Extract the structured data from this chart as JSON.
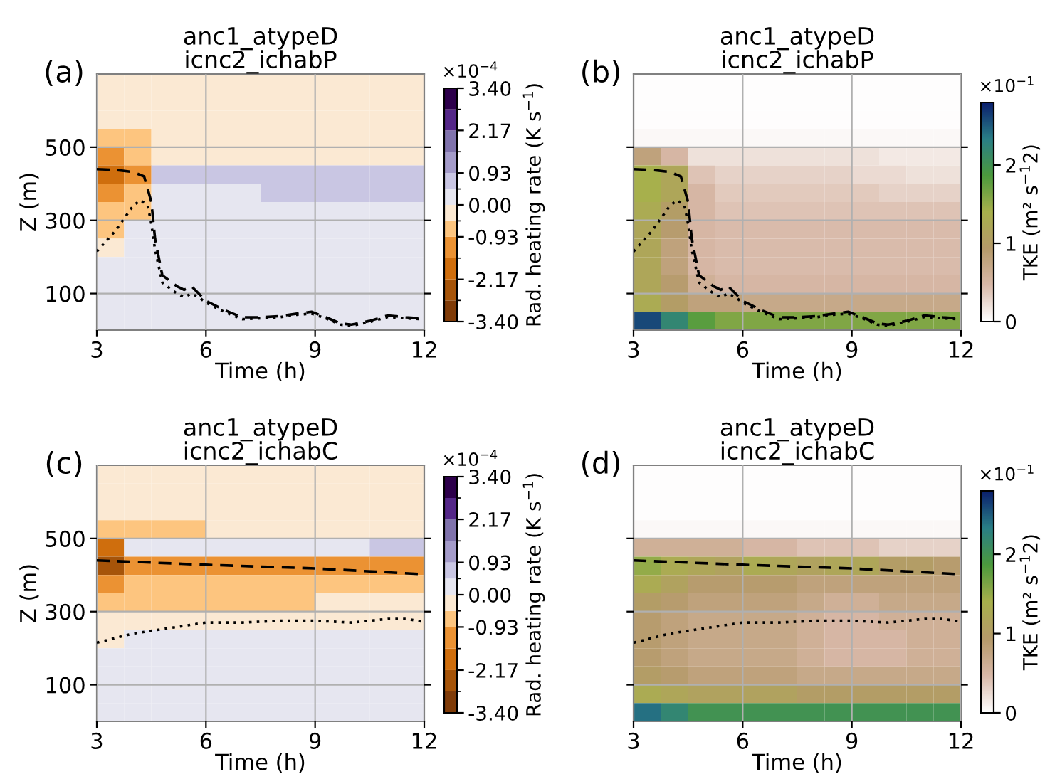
{
  "chart_data": [
    {
      "type": "heatmap",
      "title": "anc1_atypeD\nicnc2_ichabP",
      "xlabel": "Time (h)",
      "ylabel": "Z (m)",
      "clabel": "Rad. heating rate (K s$^{−1}$)",
      "annotations": [
        "(a)",
        "×10$^{−4}$"
      ],
      "x": [
        3.375,
        4.125,
        4.875,
        5.625,
        6.375,
        7.125,
        7.875,
        8.625,
        9.375,
        10.125,
        10.875,
        11.625
      ],
      "cells": [
        [
          -0.23,
          -0.23,
          -0.23,
          -0.23,
          -0.23,
          -0.23,
          -0.23,
          -0.23,
          -0.23,
          -0.23,
          -0.23,
          -0.23
        ],
        [
          -0.23,
          -0.23,
          -0.23,
          -0.23,
          -0.23,
          -0.23,
          -0.23,
          -0.23,
          -0.23,
          -0.23,
          -0.23,
          -0.23
        ],
        [
          -0.23,
          -0.23,
          -0.23,
          -0.23,
          -0.23,
          -0.23,
          -0.23,
          -0.23,
          -0.23,
          -0.23,
          -0.23,
          -0.23
        ],
        [
          -0.7,
          -0.7,
          -0.23,
          -0.23,
          -0.23,
          -0.23,
          -0.23,
          -0.23,
          -0.23,
          -0.23,
          -0.23,
          -0.23
        ],
        [
          -1.24,
          -0.7,
          -0.23,
          -0.23,
          -0.23,
          -0.23,
          -0.23,
          -0.23,
          -0.23,
          -0.23,
          -0.23,
          -0.23
        ],
        [
          -1.86,
          -1.24,
          0.7,
          0.7,
          0.7,
          0.7,
          0.7,
          0.7,
          0.7,
          0.7,
          0.7,
          0.7
        ],
        [
          -1.24,
          -0.7,
          0.23,
          0.23,
          0.23,
          0.23,
          0.7,
          0.7,
          0.7,
          0.7,
          0.7,
          0.7
        ],
        [
          -0.7,
          -0.7,
          0.23,
          0.23,
          0.23,
          0.23,
          0.23,
          0.23,
          0.23,
          0.23,
          0.23,
          0.23
        ],
        [
          -0.7,
          0.23,
          0.23,
          0.23,
          0.23,
          0.23,
          0.23,
          0.23,
          0.23,
          0.23,
          0.23,
          0.23
        ],
        [
          -0.23,
          0.23,
          0.23,
          0.23,
          0.23,
          0.23,
          0.23,
          0.23,
          0.23,
          0.23,
          0.23,
          0.23
        ],
        [
          0.23,
          0.23,
          0.23,
          0.23,
          0.23,
          0.23,
          0.23,
          0.23,
          0.23,
          0.23,
          0.23,
          0.23
        ],
        [
          0.23,
          0.23,
          0.23,
          0.23,
          0.23,
          0.23,
          0.23,
          0.23,
          0.23,
          0.23,
          0.23,
          0.23
        ],
        [
          0.23,
          0.23,
          0.23,
          0.23,
          0.23,
          0.23,
          0.23,
          0.23,
          0.23,
          0.23,
          0.23,
          0.23
        ],
        [
          0.23,
          0.23,
          0.23,
          0.23,
          0.23,
          0.23,
          0.23,
          0.23,
          0.23,
          0.23,
          0.23,
          0.23
        ]
      ],
      "clim": [
        -3.4,
        3.4
      ],
      "cticks": [
        {
          "value": -3.4,
          "label": "-3.40"
        },
        {
          "value": -2.17,
          "label": "-2.17"
        },
        {
          "value": -0.93,
          "label": "-0.93"
        },
        {
          "value": 0,
          "label": "0.00"
        },
        {
          "value": 0.93,
          "label": "0.93"
        },
        {
          "value": 2.17,
          "label": "2.17"
        },
        {
          "value": 3.4,
          "label": "3.40"
        }
      ],
      "colors": [
        "#7f3b08",
        "#a65409",
        "#cf6e0d",
        "#eb9233",
        "#fdc57f",
        "#fbe9d3",
        "#e6e6f0",
        "#c9c6e3",
        "#a49bc9",
        "#8073ac",
        "#542788",
        "#2d004b"
      ],
      "series": [
        {
          "type": "line",
          "color": "#000000",
          "line_style": "dashed",
          "x": [
            3,
            3.5,
            4,
            4.3,
            4.5,
            4.6,
            4.8,
            5.2,
            5.4,
            5.6,
            5.8,
            6,
            6.5,
            7,
            7.5,
            8,
            8.5,
            8.9,
            9.3,
            9.7,
            10,
            10.5,
            11,
            11.5,
            11.9
          ],
          "values": [
            440,
            438,
            432,
            420,
            350,
            250,
            150,
            120,
            110,
            120,
            100,
            80,
            55,
            35,
            35,
            38,
            45,
            50,
            35,
            18,
            15,
            25,
            40,
            35,
            32
          ]
        },
        {
          "type": "line",
          "color": "#000000",
          "line_style": "dotted",
          "x": [
            3,
            3.5,
            4,
            4.2,
            4.4,
            4.5,
            4.6,
            4.8,
            5.2,
            5.4,
            5.6,
            5.8,
            6,
            6.5,
            7,
            7.5,
            8,
            8.5,
            8.9,
            9.3,
            9.7,
            10,
            10.5,
            11,
            11.5,
            11.9
          ],
          "values": [
            215,
            270,
            340,
            355,
            340,
            290,
            220,
            130,
            100,
            90,
            100,
            90,
            75,
            50,
            30,
            32,
            35,
            42,
            45,
            32,
            15,
            12,
            22,
            36,
            32,
            30
          ]
        }
      ],
      "xlim": [
        3,
        12
      ],
      "xticks": [
        3,
        6,
        9,
        12
      ],
      "ylim": [
        0,
        700
      ],
      "yticks": [
        100,
        300,
        500
      ],
      "grid": true
    },
    {
      "type": "heatmap",
      "title": "anc1_atypeD\nicnc2_ichabP",
      "xlabel": "Time (h)",
      "clabel": "TKE (m² s$^{−1}$2)",
      "annotations": [
        "(b)",
        "×10$^{−1}$"
      ],
      "tick_labels": "x",
      "x": [
        3.375,
        4.125,
        4.875,
        5.625,
        6.375,
        7.125,
        7.875,
        8.625,
        9.375,
        10.125,
        10.875,
        11.625
      ],
      "cells": [
        [
          0.02,
          0.02,
          0.02,
          0.02,
          0.02,
          0.02,
          0.02,
          0.02,
          0.02,
          0.02,
          0.02,
          0.02
        ],
        [
          0.02,
          0.02,
          0.02,
          0.02,
          0.02,
          0.02,
          0.02,
          0.02,
          0.02,
          0.02,
          0.02,
          0.02
        ],
        [
          0.02,
          0.02,
          0.02,
          0.02,
          0.02,
          0.02,
          0.02,
          0.02,
          0.02,
          0.02,
          0.02,
          0.02
        ],
        [
          0.05,
          0.05,
          0.05,
          0.05,
          0.05,
          0.05,
          0.05,
          0.05,
          0.05,
          0.05,
          0.05,
          0.05
        ],
        [
          0.8,
          0.5,
          0.2,
          0.2,
          0.2,
          0.2,
          0.2,
          0.2,
          0.2,
          0.15,
          0.15,
          0.15
        ],
        [
          1.4,
          1.2,
          0.4,
          0.3,
          0.3,
          0.3,
          0.3,
          0.3,
          0.25,
          0.25,
          0.2,
          0.2
        ],
        [
          1.4,
          1.2,
          0.5,
          0.35,
          0.35,
          0.35,
          0.35,
          0.35,
          0.35,
          0.3,
          0.3,
          0.3
        ],
        [
          1.3,
          1.0,
          0.5,
          0.4,
          0.4,
          0.4,
          0.4,
          0.4,
          0.4,
          0.4,
          0.4,
          0.4
        ],
        [
          1.2,
          0.9,
          0.5,
          0.45,
          0.45,
          0.45,
          0.45,
          0.45,
          0.45,
          0.45,
          0.45,
          0.45
        ],
        [
          1.2,
          0.8,
          0.5,
          0.45,
          0.45,
          0.45,
          0.45,
          0.45,
          0.45,
          0.45,
          0.45,
          0.45
        ],
        [
          1.2,
          0.8,
          0.5,
          0.45,
          0.45,
          0.45,
          0.45,
          0.45,
          0.45,
          0.45,
          0.45,
          0.45
        ],
        [
          1.2,
          0.9,
          0.6,
          0.5,
          0.5,
          0.5,
          0.5,
          0.5,
          0.5,
          0.5,
          0.5,
          0.5
        ],
        [
          1.3,
          1.0,
          0.8,
          0.8,
          0.7,
          0.7,
          0.7,
          0.7,
          0.7,
          0.7,
          0.7,
          0.7
        ],
        [
          2.6,
          2.2,
          1.8,
          1.6,
          1.6,
          1.6,
          1.6,
          1.6,
          1.6,
          1.6,
          1.6,
          1.6
        ]
      ],
      "clim": [
        0,
        2.8
      ],
      "cticks": [
        0,
        1,
        2
      ],
      "colors": [
        "#ffffff",
        "#d8b8a8",
        "#b59a6a",
        "#a8b04c",
        "#4c9a3d",
        "#2a7f86",
        "#0b1f6e"
      ],
      "series": [
        {
          "type": "line",
          "color": "#000000",
          "line_style": "dashed",
          "x": [
            3,
            3.5,
            4,
            4.3,
            4.5,
            4.6,
            4.8,
            5.2,
            5.4,
            5.6,
            5.8,
            6,
            6.5,
            7,
            7.5,
            8,
            8.5,
            8.9,
            9.3,
            9.7,
            10,
            10.5,
            11,
            11.5,
            11.9
          ],
          "values": [
            440,
            438,
            432,
            420,
            350,
            250,
            150,
            120,
            110,
            120,
            100,
            80,
            55,
            35,
            35,
            38,
            45,
            50,
            35,
            18,
            15,
            25,
            40,
            35,
            32
          ]
        },
        {
          "type": "line",
          "color": "#000000",
          "line_style": "dotted",
          "x": [
            3,
            3.5,
            4,
            4.2,
            4.4,
            4.5,
            4.6,
            4.8,
            5.2,
            5.4,
            5.6,
            5.8,
            6,
            6.5,
            7,
            7.5,
            8,
            8.5,
            8.9,
            9.3,
            9.7,
            10,
            10.5,
            11,
            11.5,
            11.9
          ],
          "values": [
            215,
            270,
            340,
            355,
            340,
            290,
            220,
            130,
            100,
            90,
            100,
            90,
            75,
            50,
            30,
            32,
            35,
            42,
            45,
            32,
            15,
            12,
            22,
            36,
            32,
            30
          ]
        }
      ],
      "xlim": [
        3,
        12
      ],
      "xticks": [
        3,
        6,
        9,
        12
      ],
      "ylim": [
        0,
        700
      ],
      "yticks": [
        100,
        300,
        500
      ],
      "grid": true
    },
    {
      "type": "heatmap",
      "title": "anc1_atypeD\nicnc2_ichabC",
      "xlabel": "Time (h)",
      "ylabel": "Z (m)",
      "clabel": "Rad. heating rate (K s$^{−1}$)",
      "annotations": [
        "(c)",
        "×10$^{−4}$"
      ],
      "x": [
        3.375,
        4.125,
        4.875,
        5.625,
        6.375,
        7.125,
        7.875,
        8.625,
        9.375,
        10.125,
        10.875,
        11.625
      ],
      "cells": [
        [
          -0.23,
          -0.23,
          -0.23,
          -0.23,
          -0.23,
          -0.23,
          -0.23,
          -0.23,
          -0.23,
          -0.23,
          -0.23,
          -0.23
        ],
        [
          -0.23,
          -0.23,
          -0.23,
          -0.23,
          -0.23,
          -0.23,
          -0.23,
          -0.23,
          -0.23,
          -0.23,
          -0.23,
          -0.23
        ],
        [
          -0.23,
          -0.23,
          -0.23,
          -0.23,
          -0.23,
          -0.23,
          -0.23,
          -0.23,
          -0.23,
          -0.23,
          -0.23,
          -0.23
        ],
        [
          -0.7,
          -0.7,
          -0.7,
          -0.7,
          -0.23,
          -0.23,
          -0.23,
          -0.23,
          -0.23,
          -0.23,
          -0.23,
          -0.23
        ],
        [
          -1.86,
          0.23,
          0.23,
          0.23,
          0.23,
          0.23,
          0.23,
          0.23,
          0.23,
          0.23,
          0.7,
          0.7
        ],
        [
          -2.48,
          -1.24,
          -1.24,
          -1.24,
          -1.24,
          -1.24,
          -1.24,
          -1.24,
          -1.24,
          -1.24,
          -1.24,
          -1.24
        ],
        [
          -1.24,
          -0.7,
          -0.7,
          -0.7,
          -0.7,
          -0.7,
          -0.7,
          -0.7,
          -0.7,
          -0.7,
          -0.7,
          -0.7
        ],
        [
          -0.7,
          -0.7,
          -0.7,
          -0.7,
          -0.7,
          -0.7,
          -0.7,
          -0.7,
          -0.23,
          -0.23,
          -0.23,
          -0.23
        ],
        [
          -0.23,
          -0.23,
          -0.23,
          -0.23,
          -0.23,
          -0.23,
          -0.23,
          -0.23,
          -0.23,
          -0.23,
          -0.23,
          -0.23
        ],
        [
          -0.23,
          0.23,
          0.23,
          0.23,
          0.23,
          0.23,
          0.23,
          0.23,
          0.23,
          0.23,
          0.23,
          0.23
        ],
        [
          0.23,
          0.23,
          0.23,
          0.23,
          0.23,
          0.23,
          0.23,
          0.23,
          0.23,
          0.23,
          0.23,
          0.23
        ],
        [
          0.23,
          0.23,
          0.23,
          0.23,
          0.23,
          0.23,
          0.23,
          0.23,
          0.23,
          0.23,
          0.23,
          0.23
        ],
        [
          0.23,
          0.23,
          0.23,
          0.23,
          0.23,
          0.23,
          0.23,
          0.23,
          0.23,
          0.23,
          0.23,
          0.23
        ],
        [
          0.23,
          0.23,
          0.23,
          0.23,
          0.23,
          0.23,
          0.23,
          0.23,
          0.23,
          0.23,
          0.23,
          0.23
        ]
      ],
      "clim": [
        -3.4,
        3.4
      ],
      "cticks": [
        {
          "value": -3.4,
          "label": "-3.40"
        },
        {
          "value": -2.17,
          "label": "-2.17"
        },
        {
          "value": -0.93,
          "label": "-0.93"
        },
        {
          "value": 0,
          "label": "0.00"
        },
        {
          "value": 0.93,
          "label": "0.93"
        },
        {
          "value": 2.17,
          "label": "2.17"
        },
        {
          "value": 3.4,
          "label": "3.40"
        }
      ],
      "colors": [
        "#7f3b08",
        "#a65409",
        "#cf6e0d",
        "#eb9233",
        "#fdc57f",
        "#fbe9d3",
        "#e6e6f0",
        "#c9c6e3",
        "#a49bc9",
        "#8073ac",
        "#542788",
        "#2d004b"
      ],
      "series": [
        {
          "type": "line",
          "color": "#000000",
          "line_style": "dashed",
          "x": [
            3,
            6,
            9,
            12
          ],
          "values": [
            440,
            428,
            418,
            402
          ]
        },
        {
          "type": "line",
          "color": "#000000",
          "line_style": "dotted",
          "x": [
            3,
            4,
            5,
            6,
            7,
            8,
            9,
            10,
            11,
            11.5,
            12
          ],
          "values": [
            215,
            240,
            255,
            270,
            270,
            275,
            275,
            270,
            280,
            280,
            272
          ]
        }
      ],
      "xlim": [
        3,
        12
      ],
      "xticks": [
        3,
        6,
        9,
        12
      ],
      "ylim": [
        0,
        700
      ],
      "yticks": [
        100,
        300,
        500
      ],
      "grid": true
    },
    {
      "type": "heatmap",
      "title": "anc1_atypeD\nicnc2_ichabC",
      "xlabel": "Time (h)",
      "clabel": "TKE (m² s$^{−1}$2)",
      "annotations": [
        "(d)",
        "×10$^{−1}$"
      ],
      "tick_labels": "x",
      "x": [
        3.375,
        4.125,
        4.875,
        5.625,
        6.375,
        7.125,
        7.875,
        8.625,
        9.375,
        10.125,
        10.875,
        11.625
      ],
      "cells": [
        [
          0.02,
          0.02,
          0.02,
          0.02,
          0.02,
          0.02,
          0.02,
          0.02,
          0.02,
          0.02,
          0.02,
          0.02
        ],
        [
          0.02,
          0.02,
          0.02,
          0.02,
          0.02,
          0.02,
          0.02,
          0.02,
          0.02,
          0.02,
          0.02,
          0.02
        ],
        [
          0.02,
          0.02,
          0.02,
          0.02,
          0.02,
          0.02,
          0.02,
          0.02,
          0.02,
          0.02,
          0.02,
          0.02
        ],
        [
          0.05,
          0.05,
          0.05,
          0.05,
          0.05,
          0.05,
          0.05,
          0.05,
          0.05,
          0.05,
          0.05,
          0.05
        ],
        [
          0.6,
          0.6,
          0.6,
          0.6,
          0.5,
          0.5,
          0.4,
          0.4,
          0.4,
          0.3,
          0.3,
          0.3
        ],
        [
          1.5,
          1.3,
          1.2,
          1.1,
          1.3,
          1.2,
          1.1,
          1.2,
          1.2,
          1.0,
          1.0,
          0.9
        ],
        [
          1.3,
          1.1,
          0.9,
          0.9,
          0.9,
          0.9,
          0.8,
          0.8,
          0.8,
          0.8,
          0.8,
          0.8
        ],
        [
          1.0,
          0.9,
          0.8,
          0.8,
          0.8,
          0.8,
          0.7,
          0.6,
          0.6,
          0.7,
          0.7,
          0.7
        ],
        [
          0.9,
          0.8,
          0.7,
          0.7,
          0.7,
          0.7,
          0.6,
          0.5,
          0.5,
          0.6,
          0.6,
          0.6
        ],
        [
          0.9,
          0.8,
          0.7,
          0.7,
          0.7,
          0.7,
          0.6,
          0.5,
          0.5,
          0.5,
          0.6,
          0.6
        ],
        [
          0.9,
          0.8,
          0.7,
          0.7,
          0.7,
          0.7,
          0.6,
          0.5,
          0.5,
          0.5,
          0.6,
          0.6
        ],
        [
          1.0,
          0.9,
          0.8,
          0.8,
          0.8,
          0.8,
          0.7,
          0.7,
          0.7,
          0.7,
          0.7,
          0.7
        ],
        [
          1.3,
          1.2,
          1.1,
          1.1,
          1.1,
          1.1,
          1.0,
          1.0,
          1.0,
          1.0,
          1.0,
          1.0
        ],
        [
          2.4,
          2.2,
          2.0,
          2.0,
          2.0,
          2.0,
          2.0,
          2.0,
          2.0,
          2.0,
          2.0,
          2.0
        ]
      ],
      "clim": [
        0,
        2.8
      ],
      "cticks": [
        0,
        1,
        2
      ],
      "colors": [
        "#ffffff",
        "#d8b8a8",
        "#b59a6a",
        "#a8b04c",
        "#4c9a3d",
        "#2a7f86",
        "#0b1f6e"
      ],
      "series": [
        {
          "type": "line",
          "color": "#000000",
          "line_style": "dashed",
          "x": [
            3,
            6,
            9,
            12
          ],
          "values": [
            440,
            428,
            418,
            402
          ]
        },
        {
          "type": "line",
          "color": "#000000",
          "line_style": "dotted",
          "x": [
            3,
            4,
            5,
            6,
            7,
            8,
            9,
            10,
            11,
            11.5,
            12
          ],
          "values": [
            215,
            240,
            255,
            270,
            270,
            275,
            275,
            270,
            280,
            280,
            272
          ]
        }
      ],
      "xlim": [
        3,
        12
      ],
      "xticks": [
        3,
        6,
        9,
        12
      ],
      "ylim": [
        0,
        700
      ],
      "yticks": [
        100,
        300,
        500
      ],
      "grid": true
    }
  ]
}
